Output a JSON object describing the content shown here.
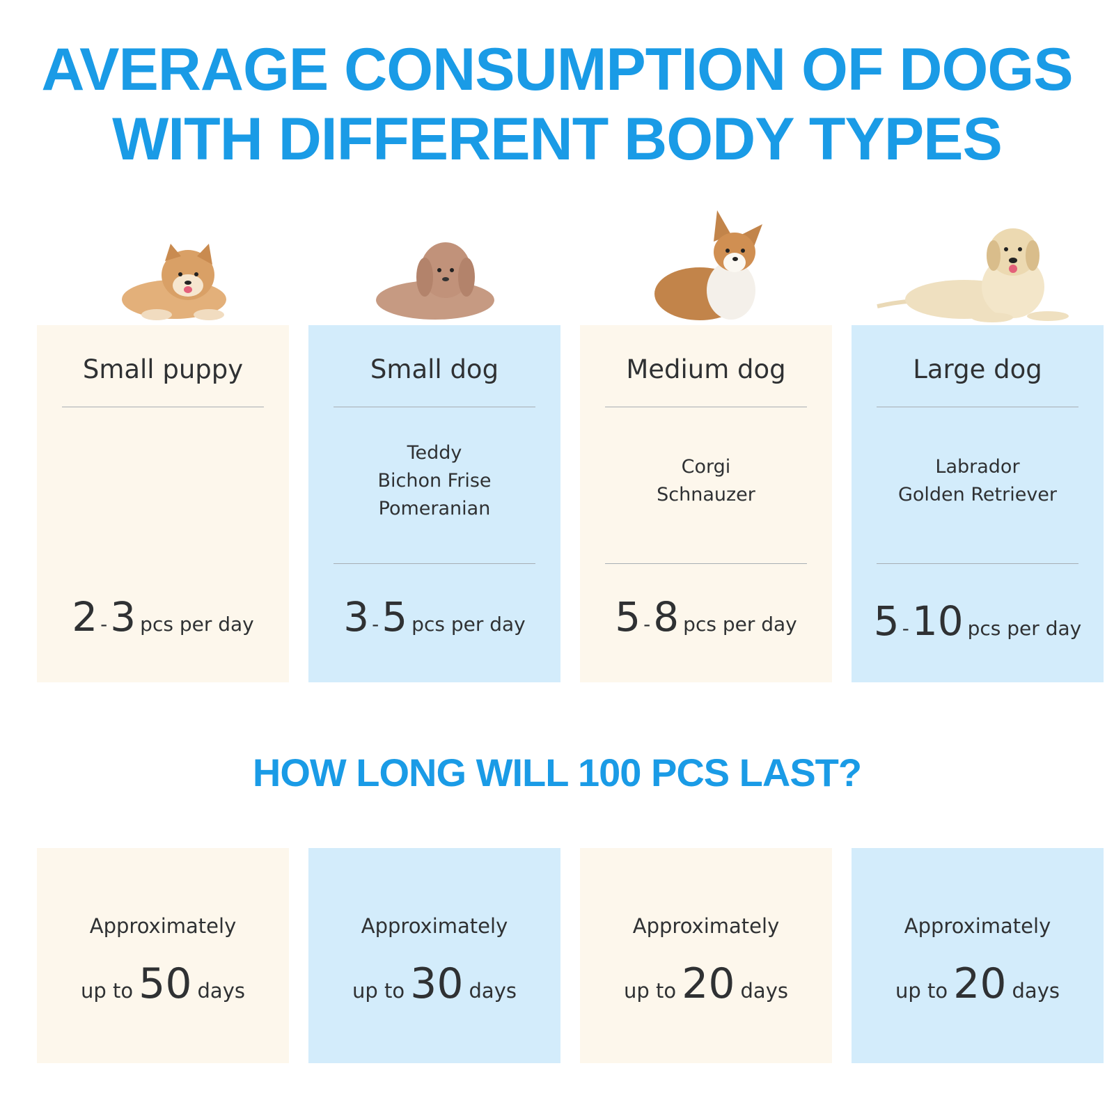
{
  "title": {
    "line1": "AVERAGE CONSUMPTION OF DOGS",
    "line2": "WITH DIFFERENT BODY TYPES"
  },
  "colors": {
    "accent": "#1a9be6",
    "cream": "#fdf7ec",
    "blue": "#d3ecfb",
    "text": "#2f3133"
  },
  "body_types": [
    {
      "name": "Small puppy",
      "breeds": [],
      "min": "2",
      "max": "3",
      "unit": "pcs per day",
      "image": "shiba-puppy"
    },
    {
      "name": "Small dog",
      "breeds": [
        "Teddy",
        "Bichon Frise",
        "Pomeranian"
      ],
      "min": "3",
      "max": "5",
      "unit": "pcs per day",
      "image": "poodle"
    },
    {
      "name": "Medium dog",
      "breeds": [
        "Corgi",
        "Schnauzer"
      ],
      "min": "5",
      "max": "8",
      "unit": "pcs per day",
      "image": "corgi"
    },
    {
      "name": "Large dog",
      "breeds": [
        "Labrador",
        "Golden Retriever"
      ],
      "min": "5",
      "max": "10",
      "unit": "pcs per day",
      "image": "labrador"
    }
  ],
  "duration": {
    "heading": "HOW LONG WILL 100 PCS LAST?",
    "items": [
      {
        "label": "Approximately",
        "prefix": "up to",
        "days": "50",
        "suffix": "days"
      },
      {
        "label": "Approximately",
        "prefix": "up to",
        "days": "30",
        "suffix": "days"
      },
      {
        "label": "Approximately",
        "prefix": "up to",
        "days": "20",
        "suffix": "days"
      },
      {
        "label": "Approximately",
        "prefix": "up to",
        "days": "20",
        "suffix": "days"
      }
    ]
  }
}
